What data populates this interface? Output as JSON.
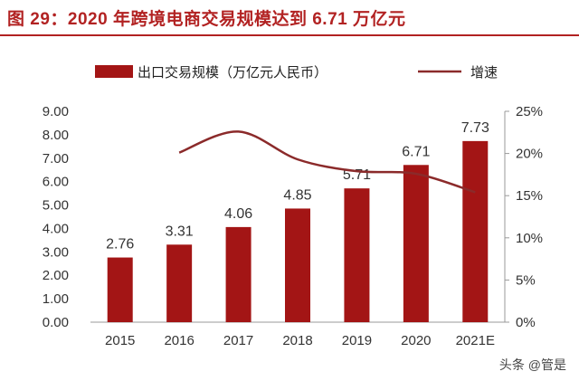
{
  "title": "图 29：2020 年跨境电商交易规模达到 6.71 万亿元",
  "watermark": "头条 @管是",
  "chart_data": {
    "type": "bar+line",
    "categories": [
      "2015",
      "2016",
      "2017",
      "2018",
      "2019",
      "2020",
      "2021E"
    ],
    "series": [
      {
        "name": "出口交易规模（万亿元人民币）",
        "type": "bar",
        "axis": "left",
        "color": "#a31515",
        "values": [
          2.76,
          3.31,
          4.06,
          4.85,
          5.71,
          6.71,
          7.73
        ]
      },
      {
        "name": "增速",
        "type": "line",
        "axis": "right",
        "color": "#8b2a2a",
        "values": [
          null,
          20.1,
          22.6,
          19.3,
          17.9,
          17.6,
          15.4
        ]
      }
    ],
    "yleft": {
      "lim": [
        0,
        9
      ],
      "ticks": [
        "0.00",
        "1.00",
        "2.00",
        "3.00",
        "4.00",
        "5.00",
        "6.00",
        "7.00",
        "8.00",
        "9.00"
      ]
    },
    "yright": {
      "lim": [
        0,
        25
      ],
      "ticks": [
        "0%",
        "5%",
        "10%",
        "15%",
        "20%",
        "25%"
      ]
    },
    "legend": "top"
  }
}
